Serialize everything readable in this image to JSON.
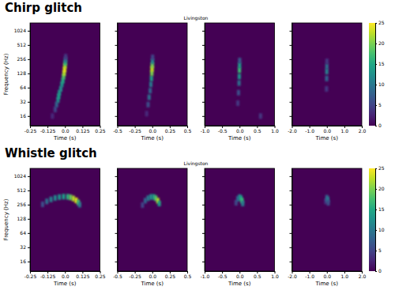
{
  "chart_data": [
    {
      "type": "heatmap",
      "heading": "Chirp glitch",
      "title": "Livingston",
      "ylabel": "Frequency (Hz)",
      "log": "y",
      "ylim": [
        10,
        1500
      ],
      "yticks": [
        16,
        32,
        64,
        128,
        256,
        512,
        1024
      ],
      "colorbar": {
        "range": [
          0,
          25
        ],
        "ticks": [
          0,
          5,
          10,
          15,
          20,
          25
        ]
      },
      "panels": [
        {
          "xlabel": "Time (s)",
          "xlim": [
            -0.25,
            0.25
          ],
          "xticks": [
            -0.25,
            -0.125,
            {
              "value": 0,
              "label": "0.0"
            },
            0.125,
            0.25
          ],
          "cells": [
            [
              -0.09,
              16,
              3
            ],
            [
              -0.07,
              22,
              5
            ],
            [
              -0.06,
              28,
              8
            ],
            [
              -0.05,
              35,
              12
            ],
            [
              -0.045,
              42,
              14
            ],
            [
              -0.04,
              50,
              13
            ],
            [
              -0.03,
              60,
              12
            ],
            [
              -0.022,
              75,
              13
            ],
            [
              -0.015,
              90,
              15
            ],
            [
              -0.01,
              110,
              18
            ],
            [
              -0.006,
              130,
              22
            ],
            [
              -0.003,
              155,
              24
            ],
            [
              0,
              185,
              22
            ],
            [
              0.002,
              215,
              16
            ],
            [
              0.004,
              250,
              9
            ],
            [
              0.005,
              290,
              4
            ]
          ]
        },
        {
          "xlabel": "Time (s)",
          "xlim": [
            -0.5,
            0.5
          ],
          "tick_labels": "x",
          "xticks": [
            -0.5,
            -0.25,
            {
              "value": 0,
              "label": "0.0"
            },
            0.25,
            0.5
          ],
          "cells": [
            [
              -0.08,
              18,
              3
            ],
            [
              -0.06,
              28,
              6
            ],
            [
              -0.045,
              40,
              9
            ],
            [
              -0.03,
              55,
              8
            ],
            [
              -0.02,
              75,
              10
            ],
            [
              -0.012,
              100,
              14
            ],
            [
              -0.006,
              130,
              20
            ],
            [
              -0.003,
              160,
              23
            ],
            [
              0,
              190,
              20
            ],
            [
              0.003,
              230,
              12
            ],
            [
              0.005,
              280,
              5
            ]
          ]
        },
        {
          "xlabel": "Time (s)",
          "xlim": [
            -1,
            1
          ],
          "tick_labels": "x",
          "xticks": [
            {
              "value": -1,
              "label": "-1.0"
            },
            -0.5,
            {
              "value": 0,
              "label": "0.0"
            },
            0.5,
            {
              "value": 1,
              "label": "1.0"
            }
          ],
          "cells": [
            [
              -0.05,
              30,
              4
            ],
            [
              -0.03,
              50,
              6
            ],
            [
              -0.015,
              80,
              9
            ],
            [
              -0.008,
              110,
              13
            ],
            [
              -0.003,
              150,
              17
            ],
            [
              0,
              190,
              14
            ],
            [
              0.003,
              240,
              7
            ],
            [
              0.6,
              16,
              4
            ]
          ]
        },
        {
          "xlabel": "Time (s)",
          "xlim": [
            -2,
            2
          ],
          "tick_labels": "x",
          "xticks": [
            {
              "value": -2,
              "label": "-2.0"
            },
            {
              "value": -1,
              "label": "-1.0"
            },
            {
              "value": 0,
              "label": "0.0"
            },
            {
              "value": 1,
              "label": "1.0"
            },
            {
              "value": 2,
              "label": "2.0"
            }
          ],
          "cells": [
            [
              -0.02,
              60,
              4
            ],
            [
              -0.01,
              100,
              8
            ],
            [
              -0.004,
              140,
              11
            ],
            [
              0,
              180,
              9
            ],
            [
              0.004,
              230,
              4
            ]
          ]
        }
      ]
    },
    {
      "type": "heatmap",
      "heading": "Whistle glitch",
      "title": "Livingston",
      "ylabel": "Frequency (Hz)",
      "log": "y",
      "ylim": [
        10,
        1500
      ],
      "yticks": [
        16,
        32,
        64,
        128,
        256,
        512,
        1024
      ],
      "colorbar": {
        "range": [
          0,
          25
        ],
        "ticks": [
          0,
          5,
          10,
          15,
          20,
          25
        ]
      },
      "panels": [
        {
          "xlabel": "Time (s)",
          "xlim": [
            -0.25,
            0.25
          ],
          "xticks": [
            -0.25,
            -0.125,
            {
              "value": 0,
              "label": "0.0"
            },
            0.125,
            0.25
          ],
          "cells": [
            [
              -0.16,
              260,
              6
            ],
            [
              -0.13,
              300,
              9
            ],
            [
              -0.1,
              330,
              11
            ],
            [
              -0.07,
              355,
              12
            ],
            [
              -0.04,
              370,
              13
            ],
            [
              -0.01,
              378,
              14
            ],
            [
              0.02,
              375,
              16
            ],
            [
              0.04,
              365,
              19
            ],
            [
              0.06,
              345,
              22
            ],
            [
              0.08,
              315,
              24
            ],
            [
              0.095,
              285,
              18
            ],
            [
              0.105,
              255,
              10
            ]
          ]
        },
        {
          "xlabel": "Time (s)",
          "xlim": [
            -0.5,
            0.5
          ],
          "tick_labels": "x",
          "xticks": [
            -0.5,
            -0.25,
            {
              "value": 0,
              "label": "0.0"
            },
            0.25,
            0.5
          ],
          "cells": [
            [
              -0.14,
              250,
              5
            ],
            [
              -0.1,
              310,
              8
            ],
            [
              -0.06,
              350,
              10
            ],
            [
              -0.02,
              372,
              12
            ],
            [
              0.02,
              372,
              14
            ],
            [
              0.05,
              350,
              18
            ],
            [
              0.08,
              310,
              22
            ],
            [
              0.1,
              270,
              14
            ]
          ]
        },
        {
          "xlabel": "Time (s)",
          "xlim": [
            -1,
            1
          ],
          "tick_labels": "x",
          "xticks": [
            {
              "value": -1,
              "label": "-1.0"
            },
            -0.5,
            {
              "value": 0,
              "label": "0.0"
            },
            0.5,
            {
              "value": 1,
              "label": "1.0"
            }
          ],
          "cells": [
            [
              -0.1,
              280,
              5
            ],
            [
              -0.05,
              340,
              8
            ],
            [
              0,
              370,
              10
            ],
            [
              0.04,
              350,
              14
            ],
            [
              0.07,
              310,
              17
            ],
            [
              0.09,
              270,
              10
            ]
          ]
        },
        {
          "xlabel": "Time (s)",
          "xlim": [
            -2,
            2
          ],
          "tick_labels": "x",
          "xticks": [
            {
              "value": -2,
              "label": "-2.0"
            },
            {
              "value": -1,
              "label": "-1.0"
            },
            {
              "value": 0,
              "label": "0.0"
            },
            {
              "value": 1,
              "label": "1.0"
            },
            {
              "value": 2,
              "label": "2.0"
            }
          ],
          "cells": [
            [
              -0.06,
              300,
              4
            ],
            [
              0,
              360,
              7
            ],
            [
              0.05,
              330,
              10
            ],
            [
              0.08,
              280,
              6
            ]
          ]
        }
      ]
    }
  ]
}
